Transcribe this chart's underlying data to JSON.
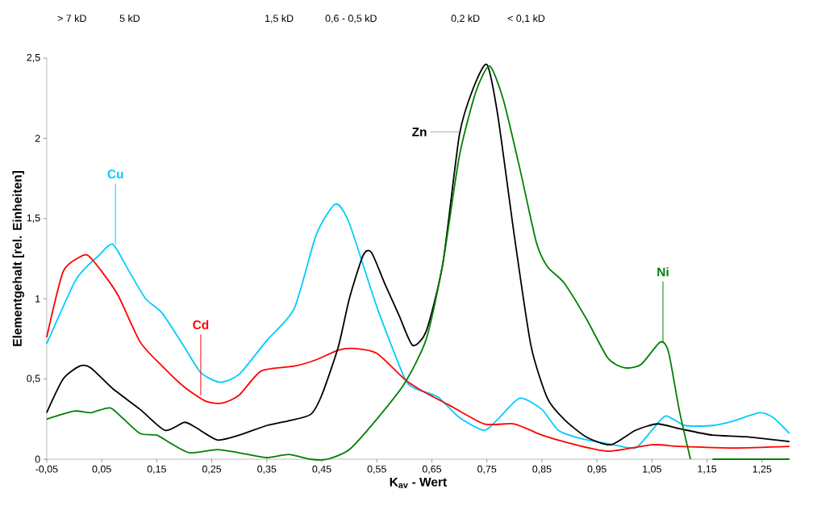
{
  "chart_data": {
    "type": "line",
    "xlabel": "K$_{av}$ - Wert",
    "ylabel": "Elementgehalt [rel. Einheiten]",
    "xlim": [
      -0.05,
      1.3
    ],
    "ylim": [
      0,
      2.5
    ],
    "xticks": [
      {
        "value": -0.05,
        "label": "-0,05"
      },
      {
        "value": 0.05,
        "label": "0,05"
      },
      {
        "value": 0.15,
        "label": "0,15"
      },
      {
        "value": 0.25,
        "label": "0,25"
      },
      {
        "value": 0.35,
        "label": "0,35"
      },
      {
        "value": 0.45,
        "label": "0,45"
      },
      {
        "value": 0.55,
        "label": "0,55"
      },
      {
        "value": 0.65,
        "label": "0,65"
      },
      {
        "value": 0.75,
        "label": "0,75"
      },
      {
        "value": 0.85,
        "label": "0,85"
      },
      {
        "value": 0.95,
        "label": "0,95"
      },
      {
        "value": 1.05,
        "label": "1,05"
      },
      {
        "value": 1.15,
        "label": "1,15"
      },
      {
        "value": 1.25,
        "label": "1,25"
      }
    ],
    "yticks": [
      0,
      {
        "value": 0.5,
        "label": "0,5"
      },
      1,
      {
        "value": 1.5,
        "label": "1,5"
      },
      2,
      {
        "value": 2.5,
        "label": "2,5"
      }
    ],
    "grid": false,
    "marker": "none",
    "line_style": "solid",
    "series": [
      {
        "color": "#00ccff",
        "x": [
          -0.05,
          0.0,
          0.02,
          0.045,
          0.07,
          0.1,
          0.13,
          0.16,
          0.2,
          0.23,
          0.265,
          0.3,
          0.35,
          0.4,
          0.44,
          0.475,
          0.5,
          0.55,
          0.6,
          0.62,
          0.66,
          0.7,
          0.745,
          0.77,
          0.81,
          0.85,
          0.88,
          0.92,
          0.98,
          1.02,
          1.05,
          1.075,
          1.11,
          1.16,
          1.2,
          1.245,
          1.27,
          1.3
        ],
        "values": [
          0.72,
          1.1,
          1.19,
          1.27,
          1.34,
          1.17,
          1.0,
          0.91,
          0.7,
          0.54,
          0.48,
          0.53,
          0.74,
          0.94,
          1.4,
          1.59,
          1.47,
          0.95,
          0.51,
          0.44,
          0.39,
          0.26,
          0.18,
          0.25,
          0.38,
          0.31,
          0.18,
          0.13,
          0.09,
          0.07,
          0.18,
          0.27,
          0.21,
          0.21,
          0.24,
          0.29,
          0.26,
          0.16
        ]
      },
      {
        "color": "#ff0000",
        "x": [
          -0.05,
          -0.02,
          0.01,
          0.025,
          0.05,
          0.08,
          0.12,
          0.16,
          0.2,
          0.24,
          0.27,
          0.3,
          0.34,
          0.4,
          0.44,
          0.48,
          0.51,
          0.55,
          0.6,
          0.63,
          0.68,
          0.745,
          0.8,
          0.85,
          0.9,
          0.97,
          1.05,
          1.1,
          1.2,
          1.3
        ],
        "values": [
          0.76,
          1.17,
          1.26,
          1.27,
          1.17,
          1.02,
          0.73,
          0.58,
          0.45,
          0.36,
          0.35,
          0.4,
          0.55,
          0.58,
          0.62,
          0.68,
          0.69,
          0.66,
          0.5,
          0.43,
          0.34,
          0.22,
          0.22,
          0.15,
          0.1,
          0.05,
          0.09,
          0.08,
          0.07,
          0.08
        ]
      },
      {
        "color": "#000000",
        "x": [
          -0.05,
          -0.02,
          0.01,
          0.03,
          0.07,
          0.12,
          0.165,
          0.2,
          0.22,
          0.26,
          0.3,
          0.35,
          0.39,
          0.43,
          0.45,
          0.48,
          0.5,
          0.525,
          0.54,
          0.565,
          0.59,
          0.615,
          0.64,
          0.67,
          0.7,
          0.725,
          0.75,
          0.77,
          0.8,
          0.83,
          0.86,
          0.89,
          0.93,
          0.975,
          1.02,
          1.06,
          1.1,
          1.16,
          1.22,
          1.3
        ],
        "values": [
          0.29,
          0.5,
          0.58,
          0.57,
          0.44,
          0.31,
          0.18,
          0.23,
          0.2,
          0.12,
          0.15,
          0.21,
          0.24,
          0.28,
          0.4,
          0.7,
          1.0,
          1.27,
          1.29,
          1.09,
          0.9,
          0.71,
          0.8,
          1.22,
          2.02,
          2.31,
          2.46,
          2.14,
          1.39,
          0.71,
          0.38,
          0.25,
          0.14,
          0.09,
          0.18,
          0.22,
          0.19,
          0.15,
          0.14,
          0.11
        ]
      },
      {
        "color": "#008000",
        "x": [
          -0.05,
          0.0,
          0.03,
          0.065,
          0.09,
          0.12,
          0.15,
          0.175,
          0.21,
          0.26,
          0.3,
          0.35,
          0.39,
          0.43,
          0.46,
          0.5,
          0.55,
          0.6,
          0.64,
          0.67,
          0.7,
          0.73,
          0.755,
          0.78,
          0.81,
          0.84,
          0.86,
          0.89,
          0.93,
          0.97,
          1.0,
          1.03,
          1.065,
          1.08,
          1.1,
          1.12,
          1.14,
          1.16,
          1.3
        ],
        "values": [
          0.25,
          0.3,
          0.29,
          0.32,
          0.25,
          0.16,
          0.15,
          0.1,
          0.04,
          0.06,
          0.04,
          0.01,
          0.03,
          0.0,
          0.0,
          0.06,
          0.25,
          0.47,
          0.75,
          1.22,
          1.89,
          2.29,
          2.45,
          2.24,
          1.81,
          1.35,
          1.2,
          1.1,
          0.88,
          0.63,
          0.57,
          0.59,
          0.73,
          0.67,
          0.3,
          0.0,
          null,
          0.0,
          0.0
        ]
      }
    ],
    "annotations": [
      {
        "text": "Cu",
        "x": 0.075,
        "y": 1.34
      },
      {
        "text": "Cd",
        "x": 0.23,
        "y": 0.4
      },
      {
        "text": "Zn",
        "x": 0.7,
        "y": 2.04
      },
      {
        "text": "Ni",
        "x": 1.07,
        "y": 0.73
      },
      "> 7 kD",
      "5 kD",
      "1,5 kD",
      "0,6 - 0,5 kD",
      "0,2 kD",
      "< 0,1 kD"
    ]
  }
}
